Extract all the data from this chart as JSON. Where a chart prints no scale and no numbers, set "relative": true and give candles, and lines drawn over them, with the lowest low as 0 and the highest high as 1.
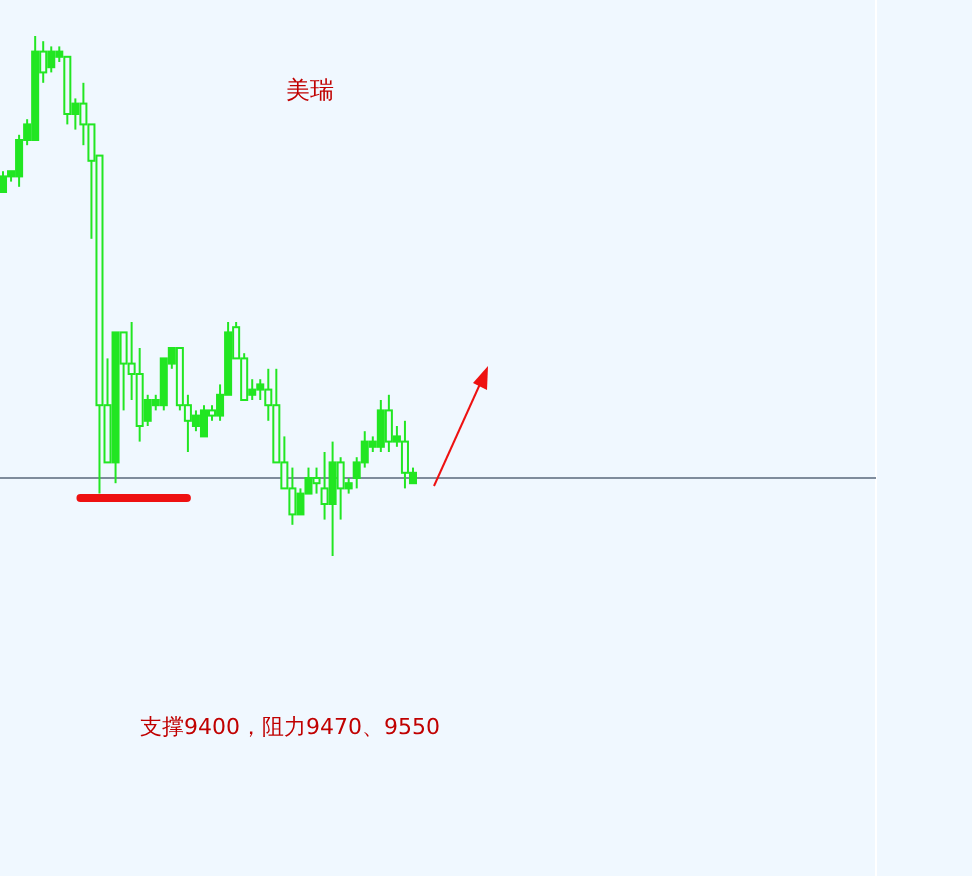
{
  "chart_data": {
    "type": "candlestick",
    "title": "美瑞",
    "relative": true,
    "color": "#22e622",
    "categories": [
      null,
      null,
      null,
      null,
      null,
      null,
      null,
      null,
      null,
      null,
      null,
      null,
      null,
      null,
      null,
      null,
      null,
      null,
      null,
      null,
      null,
      null,
      null,
      null,
      null,
      null,
      null,
      null,
      null,
      null,
      null,
      null,
      null,
      null,
      null,
      null,
      null,
      null,
      null,
      null,
      null,
      null,
      null,
      null,
      null,
      null,
      null,
      null,
      null,
      null,
      null,
      null
    ],
    "ohlc": [
      [
        0.7,
        0.74,
        0.7,
        0.73
      ],
      [
        0.73,
        0.74,
        0.72,
        0.74
      ],
      [
        0.73,
        0.81,
        0.71,
        0.8
      ],
      [
        0.8,
        0.84,
        0.79,
        0.83
      ],
      [
        0.8,
        1.0,
        0.8,
        0.97
      ],
      [
        0.97,
        0.99,
        0.91,
        0.93
      ],
      [
        0.94,
        0.98,
        0.93,
        0.97
      ],
      [
        0.96,
        0.98,
        0.95,
        0.97
      ],
      [
        0.96,
        0.96,
        0.83,
        0.85
      ],
      [
        0.85,
        0.88,
        0.82,
        0.87
      ],
      [
        0.87,
        0.91,
        0.79,
        0.83
      ],
      [
        0.83,
        0.83,
        0.61,
        0.76
      ],
      [
        0.77,
        0.77,
        0.12,
        0.29
      ],
      [
        0.29,
        0.38,
        0.18,
        0.18
      ],
      [
        0.18,
        0.43,
        0.14,
        0.43
      ],
      [
        0.43,
        0.43,
        0.28,
        0.37
      ],
      [
        0.37,
        0.45,
        0.3,
        0.35
      ],
      [
        0.35,
        0.4,
        0.22,
        0.25
      ],
      [
        0.26,
        0.31,
        0.25,
        0.3
      ],
      [
        0.29,
        0.31,
        0.28,
        0.3
      ],
      [
        0.29,
        0.38,
        0.28,
        0.38
      ],
      [
        0.37,
        0.4,
        0.36,
        0.4
      ],
      [
        0.4,
        0.4,
        0.28,
        0.29
      ],
      [
        0.29,
        0.31,
        0.2,
        0.26
      ],
      [
        0.25,
        0.28,
        0.24,
        0.27
      ],
      [
        0.23,
        0.29,
        0.23,
        0.28
      ],
      [
        0.28,
        0.29,
        0.26,
        0.27
      ],
      [
        0.27,
        0.33,
        0.26,
        0.31
      ],
      [
        0.31,
        0.45,
        0.31,
        0.43
      ],
      [
        0.44,
        0.45,
        0.38,
        0.38
      ],
      [
        0.38,
        0.39,
        0.3,
        0.3
      ],
      [
        0.31,
        0.34,
        0.3,
        0.32
      ],
      [
        0.32,
        0.34,
        0.3,
        0.33
      ],
      [
        0.32,
        0.36,
        0.26,
        0.29
      ],
      [
        0.29,
        0.36,
        0.18,
        0.18
      ],
      [
        0.18,
        0.23,
        0.13,
        0.13
      ],
      [
        0.13,
        0.17,
        0.06,
        0.08
      ],
      [
        0.08,
        0.13,
        0.08,
        0.12
      ],
      [
        0.12,
        0.17,
        0.12,
        0.15
      ],
      [
        0.15,
        0.17,
        0.12,
        0.14
      ],
      [
        0.13,
        0.2,
        0.07,
        0.1
      ],
      [
        0.1,
        0.22,
        0.0,
        0.18
      ],
      [
        0.18,
        0.19,
        0.07,
        0.13
      ],
      [
        0.13,
        0.15,
        0.12,
        0.14
      ],
      [
        0.15,
        0.19,
        0.13,
        0.18
      ],
      [
        0.18,
        0.24,
        0.17,
        0.22
      ],
      [
        0.21,
        0.23,
        0.2,
        0.22
      ],
      [
        0.21,
        0.3,
        0.2,
        0.28
      ],
      [
        0.28,
        0.31,
        0.2,
        0.22
      ],
      [
        0.22,
        0.25,
        0.21,
        0.23
      ],
      [
        0.22,
        0.26,
        0.13,
        0.16
      ],
      [
        0.14,
        0.17,
        0.14,
        0.16
      ]
    ],
    "ref_lines": [
      {
        "axis": "y",
        "value": 0.15,
        "color": "#7f8c9c"
      }
    ],
    "annotations": [
      "支撑9400，阻力9470、9550"
    ]
  }
}
